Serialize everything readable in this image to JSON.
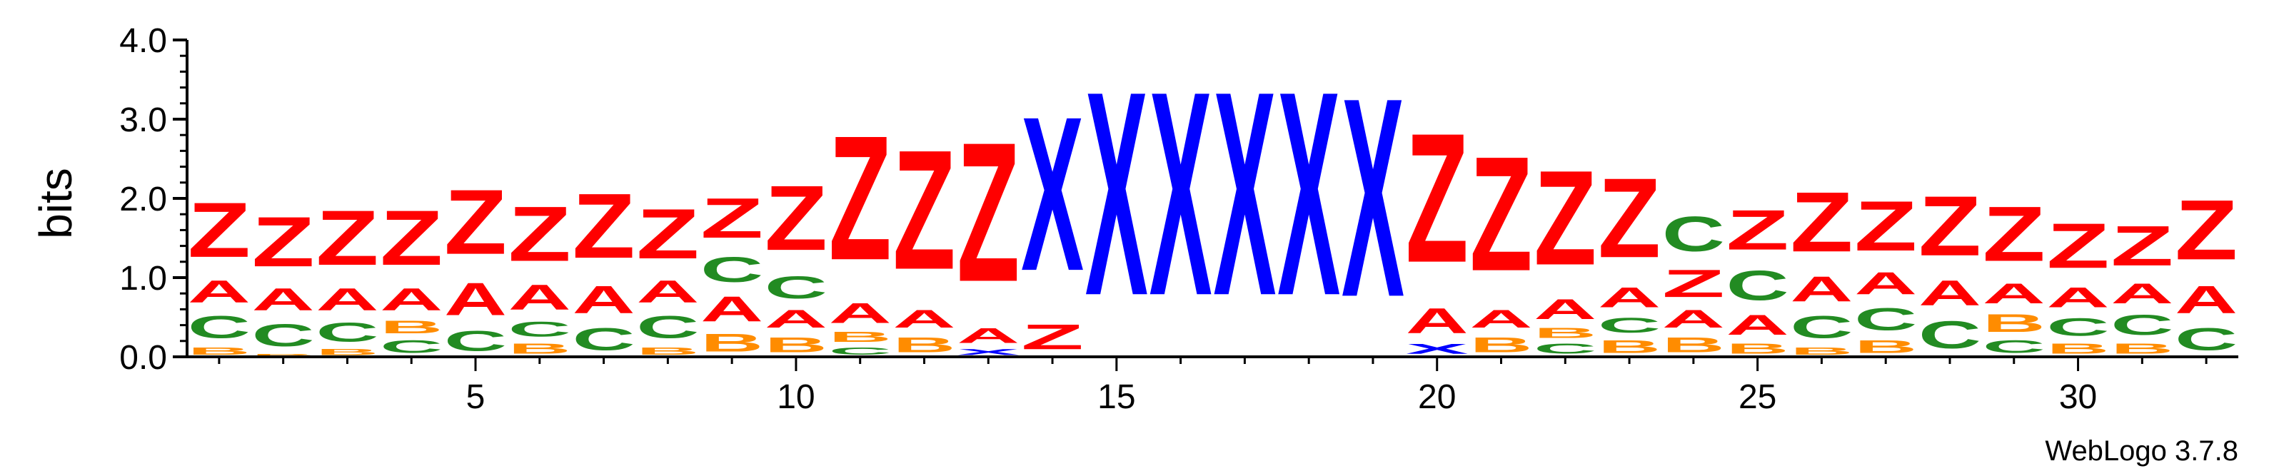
{
  "chart_data": {
    "type": "sequence-logo",
    "ylabel": "bits",
    "ylim": [
      0,
      4.0
    ],
    "y_ticks": [
      "0.0",
      "1.0",
      "2.0",
      "3.0",
      "4.0"
    ],
    "x_ticks": [
      "5",
      "10",
      "15",
      "20",
      "25",
      "30"
    ],
    "footer": "WebLogo 3.7.8",
    "colors": {
      "Z": "#ff0000",
      "A": "#ff0000",
      "X": "#0000ff",
      "C": "#228b22",
      "B": "#ff8c00"
    },
    "positions": [
      {
        "pos": 1,
        "stack": [
          [
            "B",
            0.15
          ],
          [
            "C",
            0.45
          ],
          [
            "A",
            0.45
          ],
          [
            "Z",
            1.1
          ]
        ]
      },
      {
        "pos": 2,
        "stack": [
          [
            "B",
            0.05
          ],
          [
            "C",
            0.45
          ],
          [
            "A",
            0.45
          ],
          [
            "Z",
            1.0
          ]
        ]
      },
      {
        "pos": 3,
        "stack": [
          [
            "B",
            0.12
          ],
          [
            "C",
            0.38
          ],
          [
            "A",
            0.45
          ],
          [
            "Z",
            1.1
          ]
        ]
      },
      {
        "pos": 4,
        "stack": [
          [
            "C",
            0.25
          ],
          [
            "B",
            0.25
          ],
          [
            "A",
            0.45
          ],
          [
            "Z",
            1.1
          ]
        ]
      },
      {
        "pos": 5,
        "stack": [
          [
            "C",
            0.4
          ],
          [
            "A",
            0.65
          ],
          [
            "Z",
            1.3
          ]
        ]
      },
      {
        "pos": 6,
        "stack": [
          [
            "B",
            0.2
          ],
          [
            "C",
            0.3
          ],
          [
            "A",
            0.5
          ],
          [
            "Z",
            1.1
          ]
        ]
      },
      {
        "pos": 7,
        "stack": [
          [
            "C",
            0.45
          ],
          [
            "A",
            0.55
          ],
          [
            "Z",
            1.3
          ]
        ]
      },
      {
        "pos": 8,
        "stack": [
          [
            "B",
            0.15
          ],
          [
            "C",
            0.45
          ],
          [
            "A",
            0.45
          ],
          [
            "Z",
            1.0
          ]
        ]
      },
      {
        "pos": 9,
        "stack": [
          [
            "B",
            0.35
          ],
          [
            "A",
            0.5
          ],
          [
            "C",
            0.5
          ],
          [
            "Z",
            0.8
          ]
        ]
      },
      {
        "pos": 10,
        "stack": [
          [
            "B",
            0.3
          ],
          [
            "A",
            0.35
          ],
          [
            "C",
            0.45
          ],
          [
            "Z",
            1.3
          ]
        ]
      },
      {
        "pos": 11,
        "stack": [
          [
            "C",
            0.15
          ],
          [
            "B",
            0.2
          ],
          [
            "A",
            0.4
          ],
          [
            "Z",
            2.5
          ]
        ]
      },
      {
        "pos": 12,
        "stack": [
          [
            "B",
            0.3
          ],
          [
            "A",
            0.35
          ],
          [
            "Z",
            2.4
          ]
        ]
      },
      {
        "pos": 13,
        "stack": [
          [
            "X",
            0.12
          ],
          [
            "A",
            0.3
          ],
          [
            "Z",
            2.8
          ]
        ]
      },
      {
        "pos": 14,
        "stack": [
          [
            "Z",
            0.5
          ],
          [
            "X",
            3.1
          ]
        ]
      },
      {
        "pos": 15,
        "stack": [
          [
            "X",
            4.1
          ]
        ]
      },
      {
        "pos": 16,
        "stack": [
          [
            "X",
            4.1
          ]
        ]
      },
      {
        "pos": 17,
        "stack": [
          [
            "X",
            4.1
          ]
        ]
      },
      {
        "pos": 18,
        "stack": [
          [
            "X",
            4.1
          ]
        ]
      },
      {
        "pos": 19,
        "stack": [
          [
            "X",
            4.0
          ]
        ]
      },
      {
        "pos": 20,
        "stack": [
          [
            "X",
            0.2
          ],
          [
            "A",
            0.5
          ],
          [
            "Z",
            2.6
          ]
        ]
      },
      {
        "pos": 21,
        "stack": [
          [
            "B",
            0.3
          ],
          [
            "A",
            0.35
          ],
          [
            "Z",
            2.3
          ]
        ]
      },
      {
        "pos": 22,
        "stack": [
          [
            "C",
            0.2
          ],
          [
            "B",
            0.2
          ],
          [
            "A",
            0.4
          ],
          [
            "Z",
            1.9
          ]
        ]
      },
      {
        "pos": 23,
        "stack": [
          [
            "B",
            0.25
          ],
          [
            "C",
            0.3
          ],
          [
            "A",
            0.4
          ],
          [
            "Z",
            1.6
          ]
        ]
      },
      {
        "pos": 24,
        "stack": [
          [
            "B",
            0.3
          ],
          [
            "A",
            0.35
          ],
          [
            "Z",
            0.55
          ],
          [
            "C",
            0.7
          ]
        ]
      },
      {
        "pos": 25,
        "stack": [
          [
            "B",
            0.2
          ],
          [
            "A",
            0.4
          ],
          [
            "C",
            0.6
          ],
          [
            "Z",
            0.8
          ]
        ]
      },
      {
        "pos": 26,
        "stack": [
          [
            "B",
            0.15
          ],
          [
            "C",
            0.45
          ],
          [
            "A",
            0.5
          ],
          [
            "Z",
            1.2
          ]
        ]
      },
      {
        "pos": 27,
        "stack": [
          [
            "B",
            0.25
          ],
          [
            "C",
            0.45
          ],
          [
            "A",
            0.45
          ],
          [
            "Z",
            1.0
          ]
        ]
      },
      {
        "pos": 28,
        "stack": [
          [
            "C",
            0.55
          ],
          [
            "A",
            0.5
          ],
          [
            "Z",
            1.2
          ]
        ]
      },
      {
        "pos": 29,
        "stack": [
          [
            "C",
            0.25
          ],
          [
            "B",
            0.35
          ],
          [
            "A",
            0.4
          ],
          [
            "Z",
            1.1
          ]
        ]
      },
      {
        "pos": 30,
        "stack": [
          [
            "B",
            0.2
          ],
          [
            "C",
            0.35
          ],
          [
            "A",
            0.4
          ],
          [
            "Z",
            0.9
          ]
        ]
      },
      {
        "pos": 31,
        "stack": [
          [
            "B",
            0.2
          ],
          [
            "C",
            0.4
          ],
          [
            "A",
            0.4
          ],
          [
            "Z",
            0.8
          ]
        ]
      },
      {
        "pos": 32,
        "stack": [
          [
            "C",
            0.45
          ],
          [
            "A",
            0.55
          ],
          [
            "Z",
            1.2
          ]
        ]
      }
    ]
  }
}
